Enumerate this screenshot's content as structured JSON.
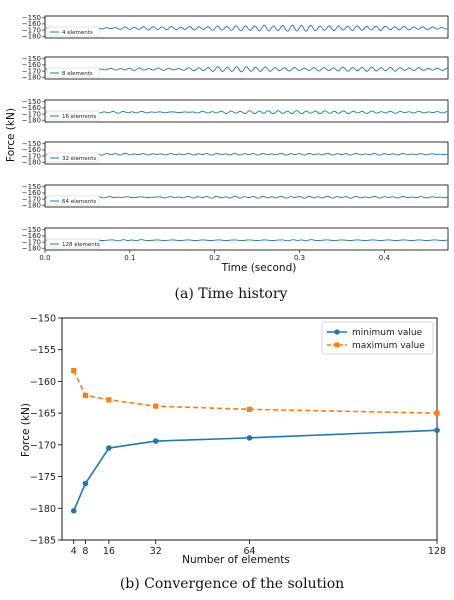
{
  "figure_a": {
    "caption": "(a) Time history",
    "ylabel": "Force (kN)",
    "xlabel": "Time (second)"
  },
  "figure_b": {
    "caption": "(b) Convergence of the solution"
  },
  "colors": {
    "series_blue": "#1f77b4",
    "series_orange": "#ff7f0e",
    "axis": "#000000"
  },
  "chart_data": [
    {
      "type": "line",
      "title": "",
      "xlabel": "Time (second)",
      "ylabel": "Force (kN)",
      "xlim": [
        0,
        0.475
      ],
      "ylim": [
        -183,
        -147
      ],
      "x_ticks": [
        "0.0",
        "0.1",
        "0.2",
        "0.3",
        "0.4"
      ],
      "x_tick_values": [
        0.0,
        0.1,
        0.2,
        0.3,
        0.4
      ],
      "y_ticks": [
        "−150",
        "−160",
        "−170",
        "−180"
      ],
      "y_tick_values": [
        -150,
        -160,
        -170,
        -180
      ],
      "legend_position": "lower-left",
      "baseline": -167,
      "panels": [
        {
          "name": "4 elements",
          "bursts": [
            [
              0.125,
              0.15,
              2.2
            ],
            [
              0.245,
              0.25,
              3.5
            ],
            [
              0.365,
              0.355,
              3.2
            ],
            [
              0.3,
              0.04,
              1.2
            ]
          ]
        },
        {
          "name": "8 elements",
          "bursts": [
            [
              0.13,
              0.18,
              2.2
            ],
            [
              0.245,
              0.24,
              3.6
            ],
            [
              0.36,
              0.35,
              3.2
            ],
            [
              0.19,
              0.2,
              1.4
            ]
          ]
        },
        {
          "name": "16 elements",
          "bursts": [
            [
              0.1,
              0.2,
              1.3
            ],
            [
              0.25,
              0.3,
              1.5
            ],
            [
              0.36,
              0.4,
              1.3
            ]
          ]
        },
        {
          "name": "32 elements",
          "bursts": [
            [
              0.07,
              0.22,
              1.2
            ],
            [
              0.2,
              0.3,
              1.1
            ],
            [
              0.33,
              0.4,
              1.1
            ]
          ]
        },
        {
          "name": "64 elements",
          "bursts": [
            [
              0.05,
              0.25,
              1.0
            ],
            [
              0.2,
              0.3,
              1.2
            ],
            [
              0.33,
              0.4,
              1.2
            ]
          ]
        },
        {
          "name": "128 elements",
          "bursts": [
            [
              0.1,
              0.05,
              0.8
            ],
            [
              0.3,
              0.05,
              0.8
            ]
          ]
        }
      ]
    },
    {
      "type": "line",
      "title": "",
      "xlabel": "Number of elements",
      "ylabel": "Force (kN)",
      "xlim": [
        0,
        128
      ],
      "ylim": [
        -185,
        -150
      ],
      "grid": false,
      "legend_position": "top-right",
      "x_ticks": [
        "4",
        "8",
        "16",
        "32",
        "64",
        "128"
      ],
      "x": [
        4,
        8,
        16,
        32,
        64,
        128
      ],
      "y_ticks": [
        "−150",
        "−155",
        "−160",
        "−165",
        "−170",
        "−175",
        "−180",
        "−185"
      ],
      "y_tick_values": [
        -150,
        -155,
        -160,
        -165,
        -170,
        -175,
        -180,
        -185
      ],
      "series": [
        {
          "name": "minimum value",
          "values": [
            -180.4,
            -176.1,
            -170.5,
            -169.4,
            -168.9,
            -167.7
          ],
          "color": "#1f77b4",
          "marker": "circle",
          "line": "solid"
        },
        {
          "name": "maximum value",
          "values": [
            -158.3,
            -162.2,
            -162.9,
            -163.9,
            -164.4,
            -165.0
          ],
          "color": "#ff7f0e",
          "marker": "square",
          "line": "dashed"
        }
      ]
    }
  ]
}
